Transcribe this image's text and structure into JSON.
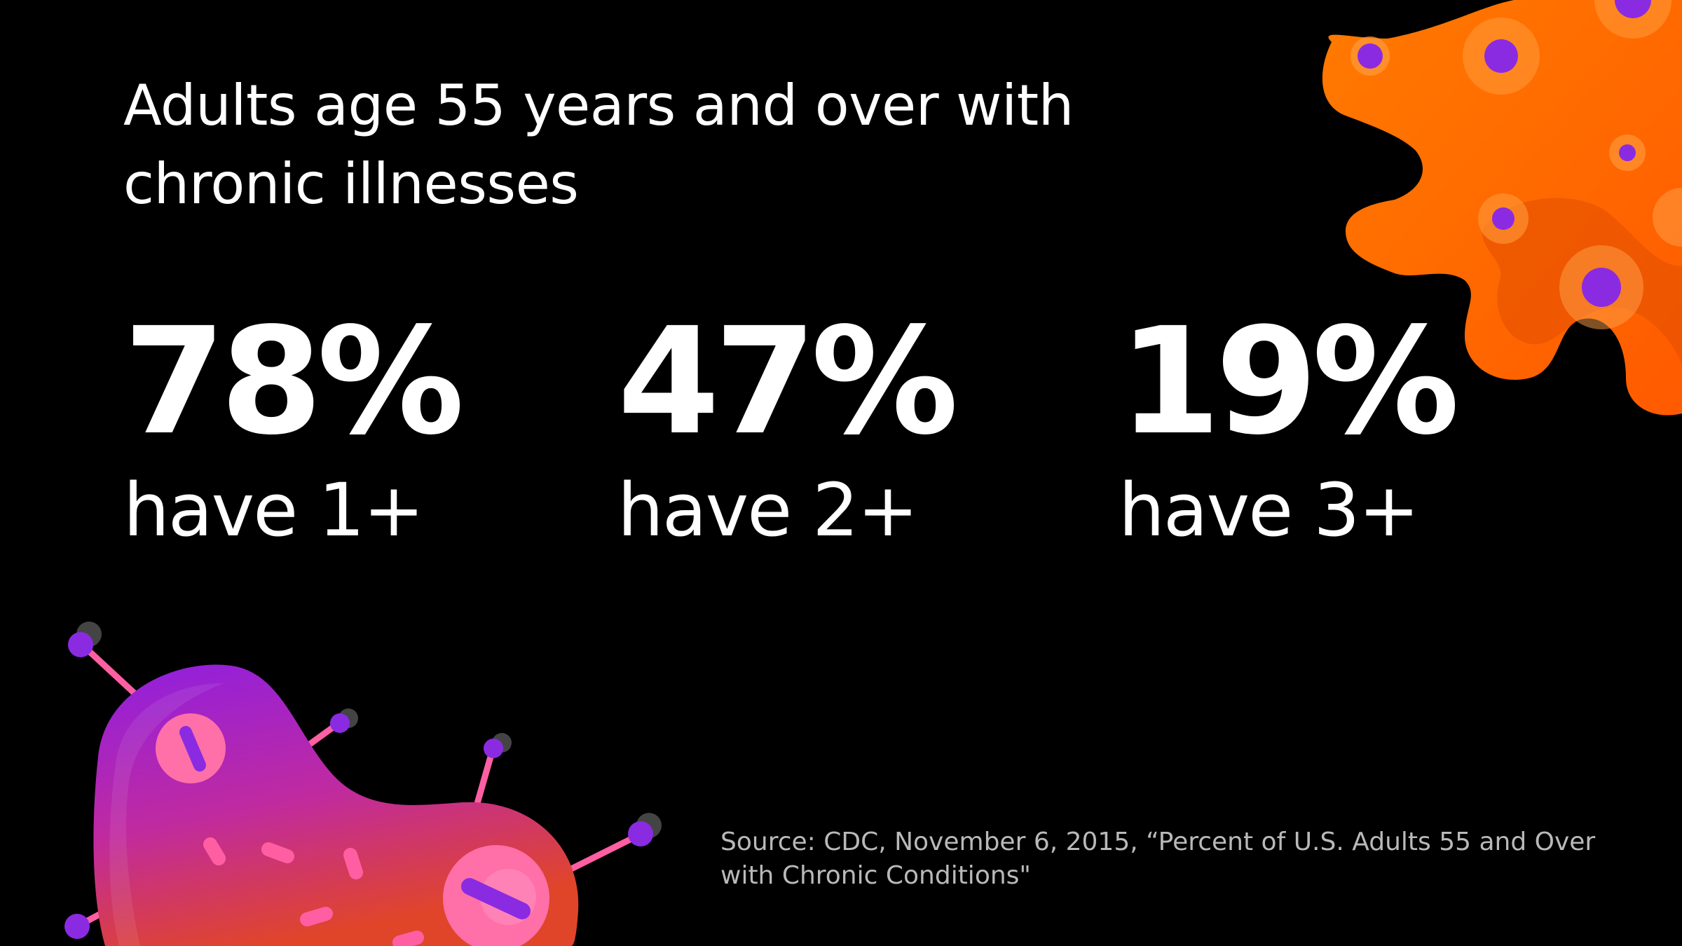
{
  "slide": {
    "title": "Adults age 55 years and over with chronic illnesses",
    "stats": [
      {
        "value": "78%",
        "caption": "have 1+"
      },
      {
        "value": "47%",
        "caption": "have 2+"
      },
      {
        "value": "19%",
        "caption": "have 3+"
      }
    ],
    "source": "Source: CDC, November 6, 2015, “Percent of U.S. Adults 55 and Over with Chronic Conditions\""
  },
  "colors": {
    "background": "#000000",
    "text": "#ffffff",
    "source_text": "#b9b9b9",
    "virus_orange": "#ff6a00",
    "virus_spot": "#8a2be2",
    "bacteria_top": "#8f1fe0",
    "bacteria_bottom": "#e0452a",
    "bacteria_spot": "#ff6fa8"
  },
  "illustrations": {
    "top_right": "orange-virus-illustration",
    "bottom_left": "bacteria-illustration"
  }
}
